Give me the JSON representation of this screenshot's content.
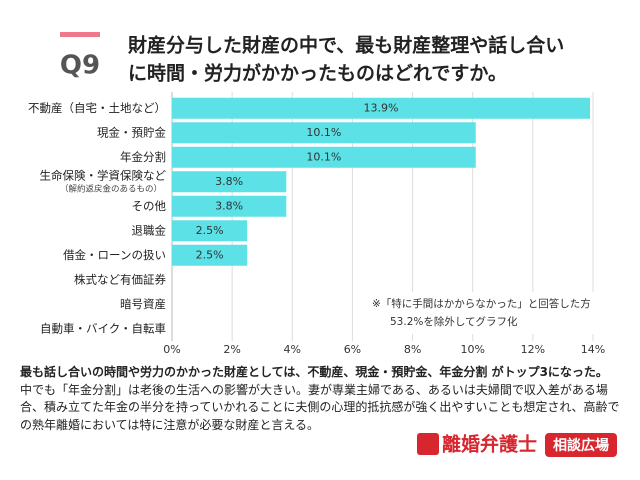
{
  "header": {
    "label": "Q9",
    "title_lines": [
      "財産分与した財産の中で、最も財産整理や話し合い",
      "に時間・労力がかかったものはどれですか。"
    ]
  },
  "chart_data": {
    "type": "hbar",
    "categories": [
      "不動産（自宅・土地など）",
      "現金・預貯金",
      "年金分割",
      "生命保険・学資保険など",
      "その他",
      "退職金",
      "借金・ローンの扱い",
      "株式など有価証券",
      "暗号資産",
      "自動車・バイク・自転車"
    ],
    "category_subtexts": [
      null,
      null,
      null,
      "（解約返戻金のあるもの）",
      null,
      null,
      null,
      null,
      null,
      null
    ],
    "values": [
      13.9,
      10.1,
      10.1,
      3.8,
      3.8,
      2.5,
      2.5,
      0,
      0,
      0
    ],
    "value_labels": [
      "13.9%",
      "10.1%",
      "10.1%",
      "3.8%",
      "3.8%",
      "2.5%",
      "2.5%",
      null,
      null,
      null
    ],
    "color": "#5ce1e6",
    "xlim": [
      0,
      14
    ],
    "xticks": [
      {
        "value": 0,
        "label": "0%"
      },
      {
        "value": 2,
        "label": "2%"
      },
      {
        "value": 4,
        "label": "4%"
      },
      {
        "value": 6,
        "label": "6%"
      },
      {
        "value": 8,
        "label": "8%"
      },
      {
        "value": 10,
        "label": "10%"
      },
      {
        "value": 12,
        "label": "12%"
      },
      {
        "value": 14,
        "label": "14%"
      }
    ],
    "grid": true,
    "note_lines": [
      "※「特に手間はかからなかった」と回答した方",
      "53.2%を除外してグラフ化"
    ]
  },
  "summary": {
    "lead": "最も話し合いの時間や労力のかかった財産としては、不動産、現金・預貯金、年金分割 がトップ3になった。",
    "body": "中でも「年金分割」は老後の生活への影響が大きい。妻が専業主婦である、あるいは夫婦間で収入差がある場合、積み立てた年金の半分を持っていかれることに夫側の心理的抵抗感が強く出やすいことも想定され、高齢での熟年離婚においては特に注意が必要な財産と言える。"
  },
  "logo": {
    "name": "離婚弁護士",
    "badge": "相談広場"
  }
}
